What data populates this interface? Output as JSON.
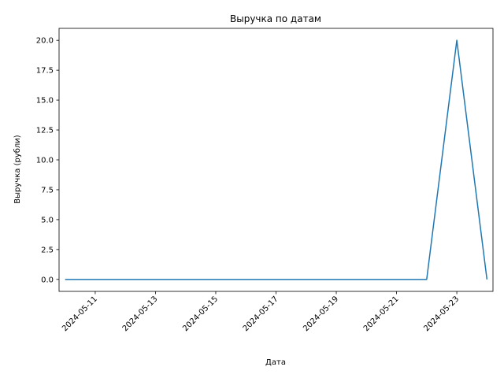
{
  "chart_data": {
    "type": "line",
    "title": "Выручка по датам",
    "xlabel": "Дата",
    "ylabel": "Выручка (рубли)",
    "x": [
      "2024-05-10",
      "2024-05-11",
      "2024-05-12",
      "2024-05-13",
      "2024-05-14",
      "2024-05-15",
      "2024-05-16",
      "2024-05-17",
      "2024-05-18",
      "2024-05-19",
      "2024-05-20",
      "2024-05-21",
      "2024-05-22",
      "2024-05-23",
      "2024-05-24"
    ],
    "series": [
      {
        "values": [
          0,
          0,
          0,
          0,
          0,
          0,
          0,
          0,
          0,
          0,
          0,
          0,
          0,
          20,
          0
        ]
      }
    ],
    "x_ticks": [
      "2024-05-11",
      "2024-05-13",
      "2024-05-15",
      "2024-05-17",
      "2024-05-19",
      "2024-05-21",
      "2024-05-23"
    ],
    "y_ticks": [
      "0.0",
      "2.5",
      "5.0",
      "7.5",
      "10.0",
      "12.5",
      "15.0",
      "17.5",
      "20.0"
    ],
    "xlim": [
      "2024-05-09T19:12",
      "2024-05-24T04:48"
    ],
    "ylim": [
      -1,
      21
    ],
    "grid": false,
    "line_color": "#1f77b4"
  }
}
